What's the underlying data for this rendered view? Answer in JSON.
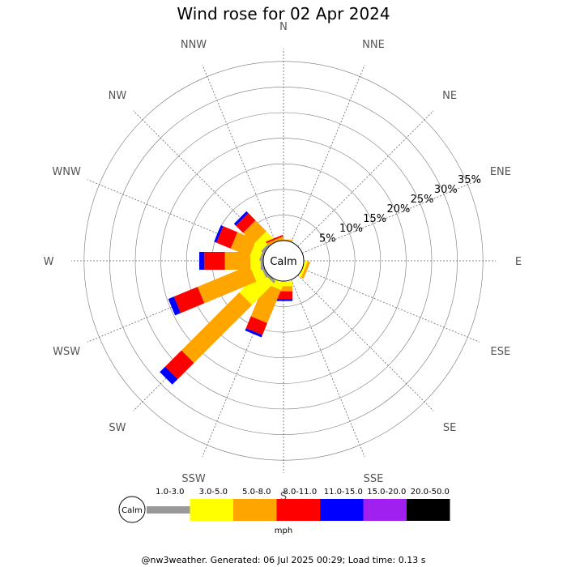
{
  "chart_data": {
    "type": "windrose",
    "title": "Wind rose for 02 Apr 2024",
    "directions": [
      "N",
      "NNE",
      "NE",
      "ENE",
      "E",
      "ESE",
      "SE",
      "SSE",
      "S",
      "SSW",
      "SW",
      "WSW",
      "W",
      "WNW",
      "NW",
      "NNW"
    ],
    "rings": [
      "5%",
      "10%",
      "15%",
      "20%",
      "25%",
      "30%",
      "35%"
    ],
    "rmax_percent": 37.5,
    "calm_label": "Calm",
    "units": "mph",
    "speed_bins": [
      {
        "label": "1.0-3.0",
        "color": "#999999"
      },
      {
        "label": "3.0-5.0",
        "color": "#ffff00"
      },
      {
        "label": "5.0-8.0",
        "color": "#ffa500"
      },
      {
        "label": "8.0-11.0",
        "color": "#ff0000"
      },
      {
        "label": "11.0-15.0",
        "color": "#0000ff"
      },
      {
        "label": "15.0-20.0",
        "color": "#a020f0"
      },
      {
        "label": "20.0-50.0",
        "color": "#000000"
      }
    ],
    "series": [
      {
        "dir": "N",
        "values": [
          0,
          0,
          0.2,
          0,
          0,
          0,
          0
        ]
      },
      {
        "dir": "NNE",
        "values": [
          0,
          0,
          0,
          0,
          0,
          0,
          0
        ]
      },
      {
        "dir": "NE",
        "values": [
          0,
          0,
          0,
          0,
          0,
          0,
          0
        ]
      },
      {
        "dir": "ENE",
        "values": [
          0,
          0,
          0,
          0,
          0,
          0,
          0
        ]
      },
      {
        "dir": "E",
        "values": [
          0,
          0,
          0,
          0,
          0,
          0,
          0
        ]
      },
      {
        "dir": "ESE",
        "values": [
          0,
          0.5,
          0.5,
          0,
          0,
          0,
          0
        ]
      },
      {
        "dir": "SE",
        "values": [
          0,
          0,
          0,
          0,
          0,
          0,
          0
        ]
      },
      {
        "dir": "SSE",
        "values": [
          0,
          0,
          0,
          0,
          0,
          0,
          0
        ]
      },
      {
        "dir": "S",
        "values": [
          0,
          1,
          1,
          1.5,
          0.4,
          0,
          0
        ]
      },
      {
        "dir": "SSW",
        "values": [
          0,
          1.5,
          7,
          2.5,
          0.5,
          0,
          0
        ]
      },
      {
        "dir": "SW",
        "values": [
          0.5,
          6,
          16,
          4.5,
          1.5,
          0,
          0
        ]
      },
      {
        "dir": "WSW",
        "values": [
          0.5,
          2,
          11,
          5,
          1.2,
          0,
          0
        ]
      },
      {
        "dir": "W",
        "values": [
          0.5,
          2,
          5,
          4,
          1,
          0,
          0
        ]
      },
      {
        "dir": "WNW",
        "values": [
          0.5,
          2,
          4,
          3,
          0.5,
          0,
          0
        ]
      },
      {
        "dir": "NW",
        "values": [
          0.5,
          2,
          3,
          2,
          0.5,
          0,
          0
        ]
      },
      {
        "dir": "NNW",
        "values": [
          0,
          0,
          0.5,
          0.3,
          0,
          0,
          0
        ]
      }
    ]
  },
  "footer": "@nw3weather. Generated: 06 Jul 2025 00:29; Load time: 0.13 s"
}
